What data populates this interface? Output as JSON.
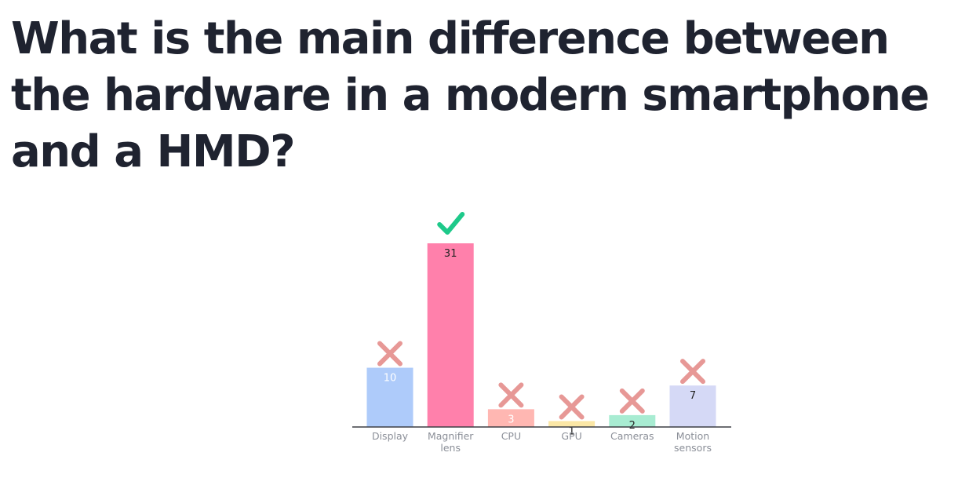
{
  "question": {
    "title": "What is the main difference between the hardware in a modern smartphone and a HMD?"
  },
  "chart_data": {
    "type": "bar",
    "categories": [
      "Display",
      "Magnifier lens",
      "CPU",
      "GPU",
      "Cameras",
      "Motion sensors"
    ],
    "category_lines": [
      [
        "Display"
      ],
      [
        "Magnifier",
        "lens"
      ],
      [
        "CPU"
      ],
      [
        "GPU"
      ],
      [
        "Cameras"
      ],
      [
        "Motion",
        "sensors"
      ]
    ],
    "values": [
      10,
      31,
      3,
      1,
      2,
      7
    ],
    "value_labels": [
      "10",
      "31",
      "3",
      "1",
      "2",
      "7"
    ],
    "correct": [
      false,
      true,
      false,
      false,
      false,
      false
    ],
    "colors": [
      "#aecbfa",
      "#ff80ab",
      "#ffb7b2",
      "#fbe7a6",
      "#a8ecd2",
      "#d5d9f6"
    ],
    "label_colors": [
      "#ffffff",
      "#222222",
      "#ffffff",
      "#222222",
      "#222222",
      "#222222"
    ],
    "marker_colors": {
      "correct": "#1ec98a",
      "incorrect": "#e79896"
    },
    "ylim": [
      0,
      31
    ],
    "grid": false,
    "legend": "none"
  }
}
